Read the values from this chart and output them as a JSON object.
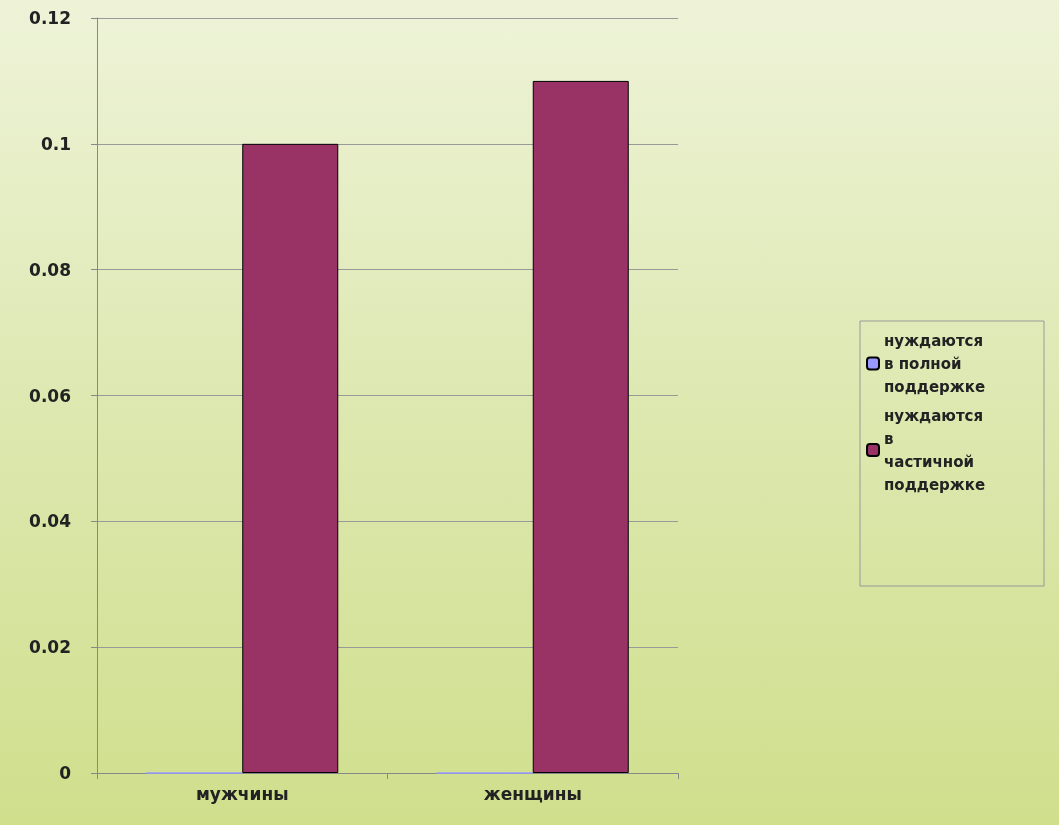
{
  "chart_data": {
    "type": "bar",
    "categories": [
      "мужчины",
      "женщины"
    ],
    "series": [
      {
        "name": "нуждаются в полной поддержке",
        "color": "#9999ff",
        "values": [
          0,
          0
        ]
      },
      {
        "name": "нуждаются в частичной поддержке",
        "color": "#993366",
        "values": [
          0.1,
          0.11
        ]
      }
    ],
    "ylim": [
      0,
      0.12
    ],
    "yticks": [
      0,
      0.02,
      0.04,
      0.06,
      0.08,
      0.1,
      0.12
    ],
    "grid": "y",
    "legend": "right"
  }
}
